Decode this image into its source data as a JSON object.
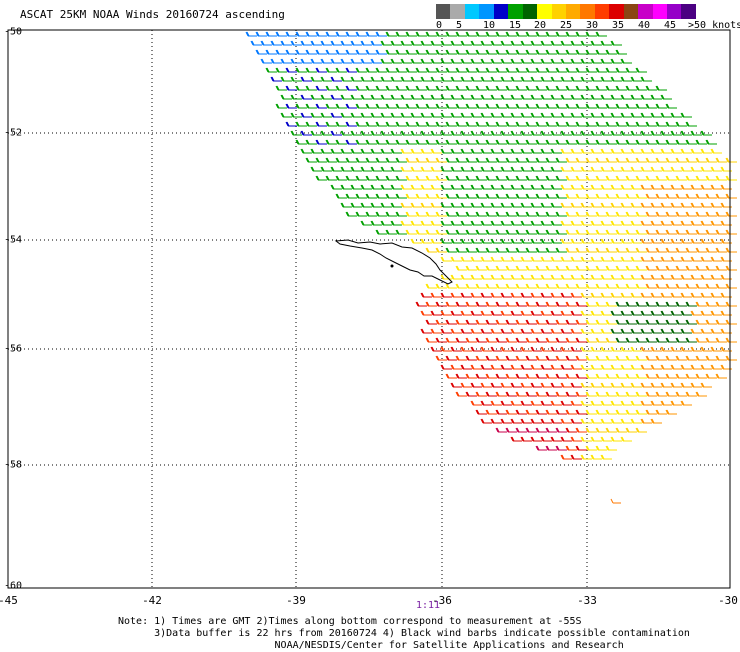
{
  "title": "ASCAT 25KM NOAA Winds 20160724 ascending",
  "colorbar": {
    "labels": [
      "0",
      "5",
      "10",
      "15",
      "20",
      "25",
      "30",
      "35",
      "40",
      "45",
      ">50 knots"
    ],
    "colors": [
      "#555555",
      "#aaaaaa",
      "#00c8ff",
      "#0096ff",
      "#0000c8",
      "#00a000",
      "#006400",
      "#ffff00",
      "#ffd200",
      "#ffaa00",
      "#ff7800",
      "#ff3c00",
      "#dc0000",
      "#8b4513",
      "#c800c8",
      "#ff00ff",
      "#9600c8",
      "#4b0082"
    ]
  },
  "map": {
    "lon_range": [
      -45,
      -30
    ],
    "lat_range": [
      -60,
      -50
    ],
    "x_ticks": [
      "-45",
      "-42",
      "-39",
      "-36",
      "-33",
      "-30"
    ],
    "y_ticks": [
      "-50",
      "-52",
      "-54",
      "-56",
      "-58",
      "-60"
    ],
    "island": "coastline-outline"
  },
  "time_label": "1:11",
  "notes": {
    "line1": "Note: 1) Times are GMT 2)Times along bottom correspond to measurement at -55S",
    "line2": "      3)Data buffer is 22 hrs from 20160724 4) Black wind barbs indicate possible contamination",
    "line3": "                          NOAA/NESDIS/Center for Satellite Applications and Research"
  }
}
